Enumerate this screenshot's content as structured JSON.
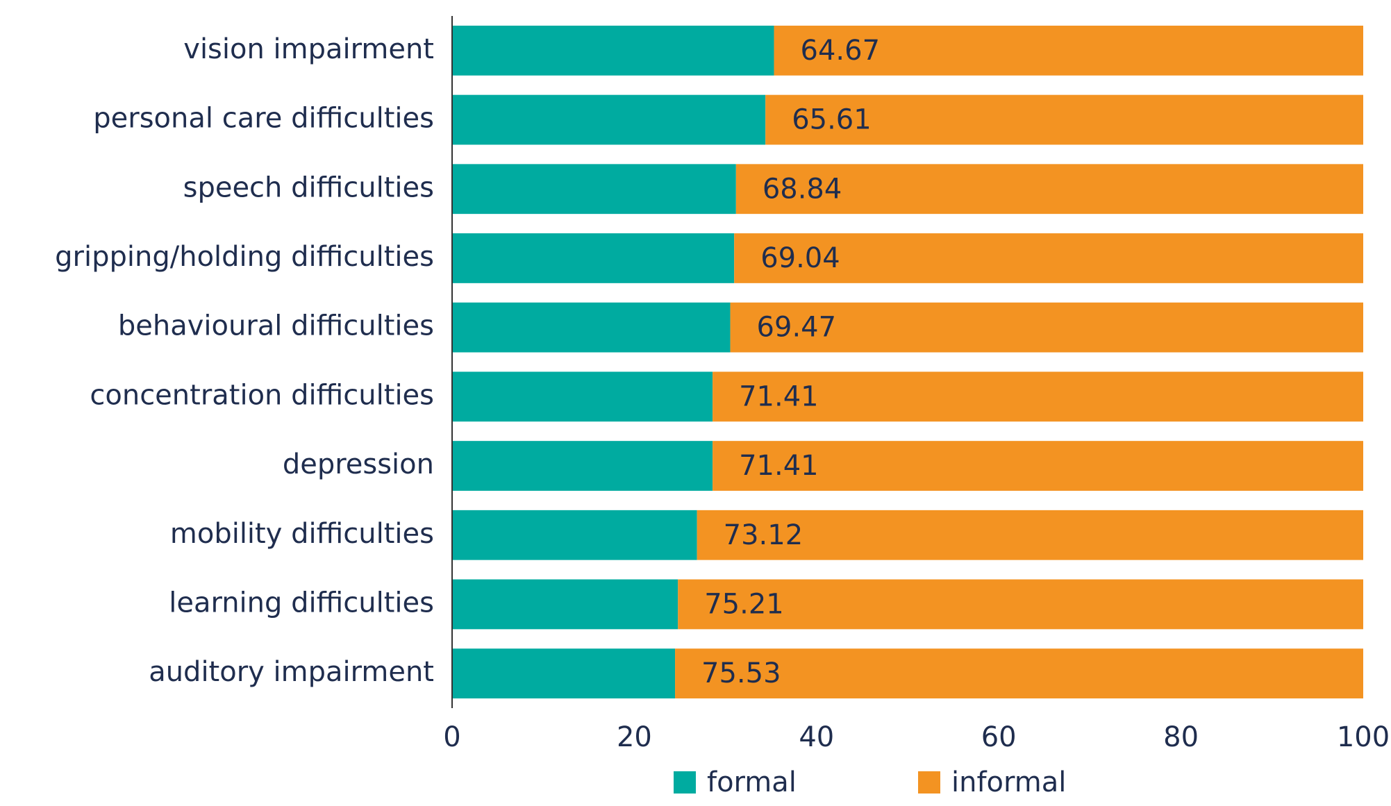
{
  "chart_data": {
    "type": "stacked-bar-horizontal",
    "categories": [
      "vision impairment",
      "personal care difficulties",
      "speech difficulties",
      "gripping/holding difficulties",
      "behavioural difficulties",
      "concentration difficulties",
      "depression",
      "mobility difficulties",
      "learning difficulties",
      "auditory impairment"
    ],
    "series": [
      {
        "name": "formal",
        "color": "#00aba0",
        "values": [
          35.33,
          34.39,
          31.16,
          30.96,
          30.53,
          28.59,
          28.59,
          26.88,
          24.79,
          24.47
        ]
      },
      {
        "name": "informal",
        "color": "#f39322",
        "values": [
          64.67,
          65.61,
          68.84,
          69.04,
          69.47,
          71.41,
          71.41,
          73.12,
          75.21,
          75.53
        ]
      }
    ],
    "xlim": [
      0,
      100
    ],
    "xticks": [
      0,
      20,
      40,
      60,
      80,
      100
    ],
    "grid": false,
    "legend": "bottom"
  }
}
